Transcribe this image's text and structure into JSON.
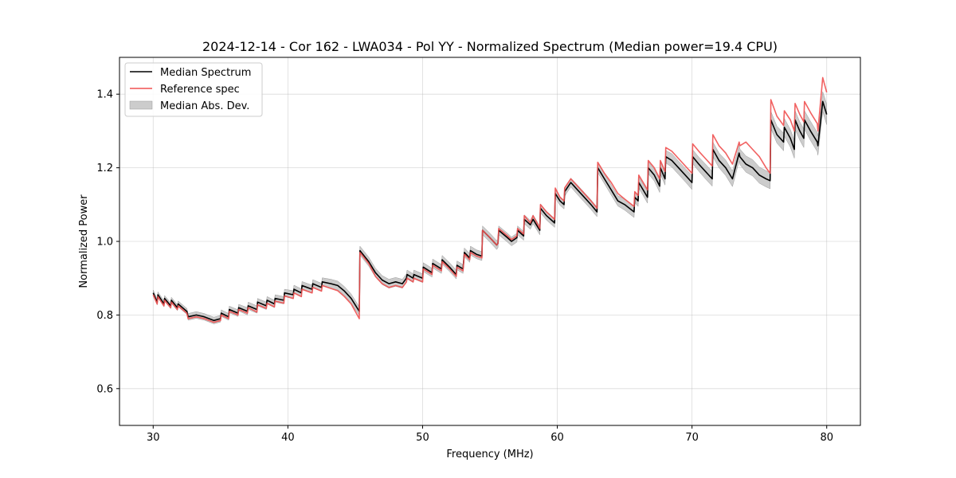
{
  "chart_data": {
    "type": "line",
    "title": "2024-12-14 - Cor 162 - LWA034 - Pol YY - Normalized Spectrum (Median power=19.4 CPU)",
    "xlabel": "Frequency (MHz)",
    "ylabel": "Normalized Power",
    "xlim": [
      27.5,
      82.5
    ],
    "ylim": [
      0.5,
      1.5
    ],
    "xticks": [
      30,
      40,
      50,
      60,
      70,
      80
    ],
    "yticks": [
      0.6,
      0.8,
      1.0,
      1.2,
      1.4
    ],
    "xtick_labels": [
      "30",
      "40",
      "50",
      "60",
      "70",
      "80"
    ],
    "ytick_labels": [
      "0.6",
      "0.8",
      "1.0",
      "1.2",
      "1.4"
    ],
    "grid": true,
    "legend_position": "top-left",
    "colors": {
      "median": "#000000",
      "reference": "#f05050",
      "band": "#bfbfbf"
    },
    "legend": [
      {
        "label": "Median Spectrum",
        "kind": "line",
        "color": "#000000"
      },
      {
        "label": "Reference spec",
        "kind": "line",
        "color": "#f05050"
      },
      {
        "label": "Median Abs. Dev.",
        "kind": "patch",
        "color": "#bfbfbf"
      }
    ],
    "series": [
      {
        "name": "Median Spectrum",
        "x": [
          30.0,
          30.3,
          30.35,
          30.8,
          30.85,
          31.3,
          31.35,
          31.8,
          31.85,
          32.5,
          32.6,
          33.2,
          33.8,
          34.5,
          35.0,
          35.05,
          35.6,
          35.65,
          36.3,
          36.35,
          37.0,
          37.05,
          37.7,
          37.75,
          38.4,
          38.45,
          39.0,
          39.05,
          39.7,
          39.75,
          40.4,
          40.45,
          41.0,
          41.05,
          41.8,
          41.85,
          42.5,
          42.55,
          43.2,
          43.7,
          44.2,
          44.7,
          45.3,
          45.35,
          46.0,
          46.5,
          47.0,
          47.5,
          48.0,
          48.5,
          48.8,
          48.85,
          49.3,
          49.35,
          50.0,
          50.05,
          50.7,
          50.75,
          51.4,
          51.45,
          52.0,
          52.5,
          52.55,
          53.0,
          53.1,
          53.5,
          53.55,
          54.0,
          54.4,
          54.45,
          55.0,
          55.5,
          55.6,
          55.65,
          56.3,
          56.6,
          57.0,
          57.05,
          57.5,
          57.55,
          58.0,
          58.2,
          58.7,
          58.75,
          59.2,
          59.8,
          59.85,
          60.2,
          60.5,
          60.55,
          61.0,
          61.5,
          62.0,
          62.5,
          62.95,
          63.0,
          63.5,
          64.0,
          64.5,
          65.0,
          65.7,
          65.75,
          66.0,
          66.05,
          66.7,
          66.75,
          67.2,
          67.6,
          67.65,
          68.0,
          68.05,
          68.5,
          69.0,
          69.5,
          70.0,
          70.05,
          70.5,
          71.0,
          71.5,
          71.55,
          72.0,
          72.5,
          73.0,
          73.5,
          73.55,
          74.0,
          74.5,
          75.0,
          75.5,
          75.8,
          75.85,
          76.3,
          76.8,
          76.85,
          77.3,
          77.6,
          77.65,
          78.0,
          78.3,
          78.35,
          78.8,
          79.3,
          79.35,
          79.7,
          80.0
        ],
        "y": [
          0.86,
          0.835,
          0.855,
          0.83,
          0.845,
          0.825,
          0.84,
          0.82,
          0.83,
          0.81,
          0.795,
          0.8,
          0.795,
          0.785,
          0.79,
          0.805,
          0.795,
          0.815,
          0.805,
          0.82,
          0.81,
          0.825,
          0.815,
          0.835,
          0.825,
          0.84,
          0.83,
          0.845,
          0.84,
          0.86,
          0.855,
          0.87,
          0.86,
          0.88,
          0.87,
          0.885,
          0.875,
          0.89,
          0.885,
          0.88,
          0.865,
          0.845,
          0.81,
          0.975,
          0.945,
          0.915,
          0.895,
          0.885,
          0.89,
          0.885,
          0.9,
          0.91,
          0.9,
          0.91,
          0.9,
          0.93,
          0.915,
          0.94,
          0.925,
          0.95,
          0.93,
          0.91,
          0.935,
          0.925,
          0.97,
          0.955,
          0.975,
          0.965,
          0.96,
          1.03,
          1.01,
          0.99,
          0.995,
          1.03,
          1.01,
          1.0,
          1.01,
          1.03,
          1.015,
          1.06,
          1.045,
          1.06,
          1.03,
          1.09,
          1.07,
          1.05,
          1.13,
          1.11,
          1.1,
          1.135,
          1.16,
          1.14,
          1.12,
          1.1,
          1.08,
          1.2,
          1.17,
          1.14,
          1.11,
          1.1,
          1.08,
          1.12,
          1.11,
          1.16,
          1.12,
          1.2,
          1.18,
          1.15,
          1.2,
          1.17,
          1.23,
          1.22,
          1.2,
          1.18,
          1.16,
          1.23,
          1.21,
          1.19,
          1.17,
          1.25,
          1.22,
          1.2,
          1.17,
          1.24,
          1.23,
          1.21,
          1.2,
          1.18,
          1.17,
          1.165,
          1.33,
          1.29,
          1.27,
          1.31,
          1.28,
          1.25,
          1.33,
          1.3,
          1.28,
          1.33,
          1.3,
          1.27,
          1.26,
          1.38,
          1.345
        ],
        "mad": [
          0.008,
          0.008,
          0.008,
          0.008,
          0.008,
          0.008,
          0.008,
          0.008,
          0.008,
          0.008,
          0.009,
          0.009,
          0.009,
          0.009,
          0.009,
          0.009,
          0.009,
          0.009,
          0.009,
          0.009,
          0.01,
          0.01,
          0.01,
          0.01,
          0.01,
          0.01,
          0.01,
          0.01,
          0.01,
          0.01,
          0.011,
          0.011,
          0.011,
          0.011,
          0.011,
          0.011,
          0.011,
          0.011,
          0.012,
          0.012,
          0.012,
          0.012,
          0.012,
          0.012,
          0.012,
          0.012,
          0.012,
          0.012,
          0.012,
          0.012,
          0.012,
          0.012,
          0.012,
          0.012,
          0.012,
          0.012,
          0.012,
          0.012,
          0.012,
          0.012,
          0.012,
          0.012,
          0.012,
          0.012,
          0.012,
          0.012,
          0.012,
          0.012,
          0.012,
          0.012,
          0.012,
          0.012,
          0.012,
          0.012,
          0.012,
          0.012,
          0.012,
          0.012,
          0.012,
          0.012,
          0.012,
          0.012,
          0.012,
          0.012,
          0.012,
          0.012,
          0.012,
          0.012,
          0.012,
          0.012,
          0.012,
          0.013,
          0.013,
          0.013,
          0.013,
          0.013,
          0.013,
          0.014,
          0.014,
          0.015,
          0.015,
          0.015,
          0.015,
          0.015,
          0.016,
          0.016,
          0.016,
          0.017,
          0.017,
          0.017,
          0.017,
          0.018,
          0.018,
          0.018,
          0.019,
          0.019,
          0.019,
          0.02,
          0.02,
          0.02,
          0.02,
          0.021,
          0.021,
          0.021,
          0.021,
          0.022,
          0.022,
          0.022,
          0.022,
          0.022,
          0.023,
          0.023,
          0.024,
          0.024,
          0.024,
          0.024,
          0.025,
          0.025,
          0.025,
          0.025,
          0.026,
          0.026,
          0.026,
          0.027,
          0.028
        ]
      },
      {
        "name": "Reference spec",
        "x": [
          30.0,
          30.3,
          30.35,
          30.8,
          30.85,
          31.3,
          31.35,
          31.8,
          31.85,
          32.5,
          32.6,
          33.2,
          33.8,
          34.5,
          35.0,
          35.05,
          35.6,
          35.65,
          36.3,
          36.35,
          37.0,
          37.05,
          37.7,
          37.75,
          38.4,
          38.45,
          39.0,
          39.05,
          39.7,
          39.75,
          40.4,
          40.45,
          41.0,
          41.05,
          41.8,
          41.85,
          42.5,
          42.55,
          43.2,
          43.7,
          44.2,
          44.7,
          45.3,
          45.35,
          46.0,
          46.5,
          47.0,
          47.5,
          48.0,
          48.5,
          48.8,
          48.85,
          49.3,
          49.35,
          50.0,
          50.05,
          50.7,
          50.75,
          51.4,
          51.45,
          52.0,
          52.5,
          52.55,
          53.0,
          53.1,
          53.5,
          53.55,
          54.0,
          54.4,
          54.45,
          55.0,
          55.5,
          55.6,
          55.65,
          56.3,
          56.6,
          57.0,
          57.05,
          57.5,
          57.55,
          58.0,
          58.2,
          58.7,
          58.75,
          59.2,
          59.8,
          59.85,
          60.2,
          60.5,
          60.55,
          61.0,
          61.5,
          62.0,
          62.5,
          62.95,
          63.0,
          63.5,
          64.0,
          64.5,
          65.0,
          65.7,
          65.75,
          66.0,
          66.05,
          66.7,
          66.75,
          67.2,
          67.6,
          67.65,
          68.0,
          68.05,
          68.5,
          69.0,
          69.5,
          70.0,
          70.05,
          70.5,
          71.0,
          71.5,
          71.55,
          72.0,
          72.5,
          73.0,
          73.5,
          73.55,
          74.0,
          74.5,
          75.0,
          75.5,
          75.8,
          75.85,
          76.3,
          76.8,
          76.85,
          77.3,
          77.6,
          77.65,
          78.0,
          78.3,
          78.35,
          78.8,
          79.3,
          79.35,
          79.7,
          80.0
        ],
        "y": [
          0.855,
          0.83,
          0.85,
          0.825,
          0.84,
          0.82,
          0.835,
          0.815,
          0.825,
          0.805,
          0.79,
          0.795,
          0.79,
          0.78,
          0.785,
          0.8,
          0.79,
          0.81,
          0.8,
          0.815,
          0.805,
          0.82,
          0.808,
          0.828,
          0.818,
          0.832,
          0.822,
          0.838,
          0.832,
          0.852,
          0.845,
          0.86,
          0.85,
          0.87,
          0.86,
          0.875,
          0.865,
          0.88,
          0.872,
          0.866,
          0.85,
          0.83,
          0.79,
          0.97,
          0.94,
          0.905,
          0.885,
          0.875,
          0.88,
          0.875,
          0.89,
          0.9,
          0.89,
          0.9,
          0.89,
          0.925,
          0.91,
          0.935,
          0.92,
          0.945,
          0.925,
          0.905,
          0.93,
          0.92,
          0.965,
          0.95,
          0.97,
          0.96,
          0.955,
          1.03,
          1.01,
          0.99,
          0.995,
          1.035,
          1.015,
          1.005,
          1.015,
          1.035,
          1.02,
          1.07,
          1.05,
          1.07,
          1.035,
          1.1,
          1.08,
          1.06,
          1.145,
          1.12,
          1.11,
          1.145,
          1.17,
          1.15,
          1.13,
          1.11,
          1.09,
          1.215,
          1.185,
          1.16,
          1.13,
          1.115,
          1.095,
          1.135,
          1.125,
          1.18,
          1.14,
          1.22,
          1.2,
          1.17,
          1.22,
          1.19,
          1.255,
          1.245,
          1.225,
          1.205,
          1.185,
          1.265,
          1.245,
          1.225,
          1.205,
          1.29,
          1.26,
          1.24,
          1.21,
          1.27,
          1.26,
          1.27,
          1.25,
          1.23,
          1.2,
          1.185,
          1.385,
          1.34,
          1.315,
          1.355,
          1.33,
          1.3,
          1.375,
          1.345,
          1.325,
          1.38,
          1.35,
          1.32,
          1.3,
          1.445,
          1.405
        ]
      }
    ]
  }
}
